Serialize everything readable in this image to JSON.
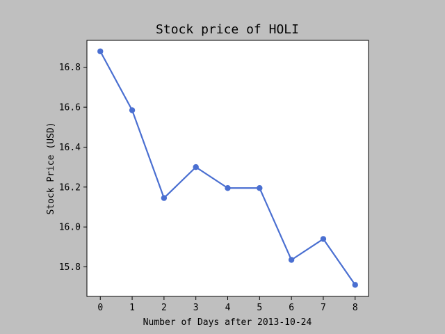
{
  "chart_data": {
    "type": "line",
    "title": "Stock price of HOLI",
    "xlabel": "Number of Days after 2013-10-24",
    "ylabel": "Stock Price (USD)",
    "x": [
      0,
      1,
      2,
      3,
      4,
      5,
      6,
      7,
      8
    ],
    "xlim": [
      -0.42,
      8.42
    ],
    "ylim": [
      15.652,
      16.935
    ],
    "xticks": [
      0,
      1,
      2,
      3,
      4,
      5,
      6,
      7,
      8
    ],
    "xtick_labels": [
      "0",
      "1",
      "2",
      "3",
      "4",
      "5",
      "6",
      "7",
      "8"
    ],
    "yticks": [
      15.8,
      16.0,
      16.2,
      16.4,
      16.6,
      16.8
    ],
    "ytick_labels": [
      "15.8",
      "16.0",
      "16.2",
      "16.4",
      "16.6",
      "16.8"
    ],
    "grid": false,
    "series": [
      {
        "values": [
          16.88,
          16.585,
          16.145,
          16.3,
          16.195,
          16.195,
          15.835,
          15.94,
          15.71
        ],
        "color": "#4a6fd1",
        "marker": "circle"
      }
    ],
    "background_color": "#bfbfbf",
    "plot_background_color": "#ffffff"
  }
}
